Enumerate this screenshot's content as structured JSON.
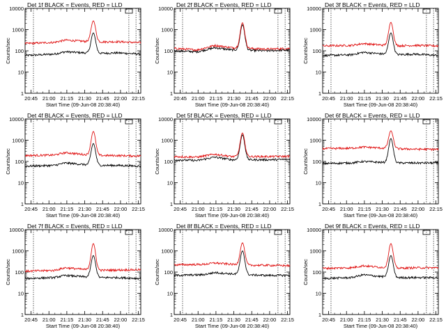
{
  "chart_data": [
    {
      "type": "line",
      "title": "Det 1f BLACK = Events, RED = LLD",
      "xlabel": "Start Time (09-Jun-08 20:38:40)",
      "ylabel": "Counts/sec",
      "yscale": "log",
      "ylim": [
        1,
        10000
      ],
      "xlim": [
        "20:40",
        "22:17"
      ],
      "xticks": [
        "20:45",
        "21:00",
        "21:15",
        "21:30",
        "21:45",
        "22:00",
        "22:15"
      ],
      "yticks": [
        "1",
        "10",
        "100",
        "1000",
        "10000"
      ],
      "vlines": [
        "20:47",
        "22:07",
        "22:13"
      ],
      "series": [
        {
          "name": "Events",
          "color": "#000000",
          "baseline": [
            [
              0,
              60
            ],
            [
              25,
              70
            ],
            [
              35,
              90
            ],
            [
              60,
              75
            ],
            [
              80,
              80
            ],
            [
              100,
              70
            ]
          ],
          "peak": {
            "center": 0.59,
            "value": 700
          }
        },
        {
          "name": "LLD",
          "color": "#e01010",
          "baseline": [
            [
              0,
              220
            ],
            [
              25,
              250
            ],
            [
              35,
              320
            ],
            [
              60,
              260
            ],
            [
              80,
              270
            ],
            [
              100,
              240
            ]
          ],
          "peak": {
            "center": 0.59,
            "value": 2600
          }
        }
      ]
    },
    {
      "type": "line",
      "title": "Det 2f BLACK = Events, RED = LLD",
      "xlabel": "Start Time (09-Jun-08 20:38:40)",
      "ylabel": "Counts/sec",
      "yscale": "log",
      "ylim": [
        1,
        10000
      ],
      "xlim": [
        "20:40",
        "22:17"
      ],
      "xticks": [
        "20:45",
        "21:00",
        "21:15",
        "21:30",
        "21:45",
        "22:00",
        "22:15"
      ],
      "yticks": [
        "1",
        "10",
        "100",
        "1000",
        "10000"
      ],
      "vlines": [
        "20:47",
        "22:07",
        "22:13"
      ],
      "series": [
        {
          "name": "Events",
          "color": "#000000",
          "baseline": [
            [
              0,
              100
            ],
            [
              20,
              90
            ],
            [
              35,
              140
            ],
            [
              50,
              110
            ],
            [
              80,
              100
            ],
            [
              100,
              110
            ]
          ],
          "peak": {
            "center": 0.59,
            "value": 1700
          }
        },
        {
          "name": "LLD",
          "color": "#e01010",
          "baseline": [
            [
              0,
              130
            ],
            [
              20,
              110
            ],
            [
              35,
              180
            ],
            [
              50,
              140
            ],
            [
              80,
              120
            ],
            [
              100,
              130
            ]
          ],
          "peak": {
            "center": 0.59,
            "value": 2100
          }
        }
      ]
    },
    {
      "type": "line",
      "title": "Det 3f BLACK = Events, RED = LLD",
      "xlabel": "Start Time (09-Jun-08 20:38:40)",
      "ylabel": "Counts/sec",
      "yscale": "log",
      "ylim": [
        1,
        10000
      ],
      "xlim": [
        "20:40",
        "22:17"
      ],
      "xticks": [
        "20:45",
        "21:00",
        "21:15",
        "21:30",
        "21:45",
        "22:00",
        "22:15"
      ],
      "yticks": [
        "1",
        "10",
        "100",
        "1000",
        "10000"
      ],
      "vlines": [
        "20:47",
        "22:07",
        "22:13"
      ],
      "series": [
        {
          "name": "Events",
          "color": "#000000",
          "baseline": [
            [
              0,
              60
            ],
            [
              25,
              65
            ],
            [
              35,
              85
            ],
            [
              60,
              65
            ],
            [
              80,
              70
            ],
            [
              100,
              60
            ]
          ],
          "peak": {
            "center": 0.59,
            "value": 700
          }
        },
        {
          "name": "LLD",
          "color": "#e01010",
          "baseline": [
            [
              0,
              170
            ],
            [
              25,
              180
            ],
            [
              35,
              220
            ],
            [
              60,
              170
            ],
            [
              80,
              180
            ],
            [
              100,
              170
            ]
          ],
          "peak": {
            "center": 0.59,
            "value": 2200
          }
        }
      ]
    },
    {
      "type": "line",
      "title": "Det 4f BLACK = Events, RED = LLD",
      "xlabel": "Start Time (09-Jun-08 20:38:40)",
      "ylabel": "Counts/sec",
      "yscale": "log",
      "ylim": [
        1,
        10000
      ],
      "xlim": [
        "20:40",
        "22:17"
      ],
      "xticks": [
        "20:45",
        "21:00",
        "21:15",
        "21:30",
        "21:45",
        "22:00",
        "22:15"
      ],
      "yticks": [
        "1",
        "10",
        "100",
        "1000",
        "10000"
      ],
      "vlines": [
        "20:47",
        "22:07",
        "22:13"
      ],
      "series": [
        {
          "name": "Events",
          "color": "#000000",
          "baseline": [
            [
              0,
              60
            ],
            [
              25,
              65
            ],
            [
              35,
              85
            ],
            [
              60,
              65
            ],
            [
              80,
              65
            ],
            [
              100,
              60
            ]
          ],
          "peak": {
            "center": 0.59,
            "value": 700
          }
        },
        {
          "name": "LLD",
          "color": "#e01010",
          "baseline": [
            [
              0,
              190
            ],
            [
              25,
              200
            ],
            [
              35,
              260
            ],
            [
              60,
              190
            ],
            [
              80,
              190
            ],
            [
              100,
              180
            ]
          ],
          "peak": {
            "center": 0.59,
            "value": 2600
          }
        }
      ]
    },
    {
      "type": "line",
      "title": "Det 5f BLACK = Events, RED = LLD",
      "xlabel": "Start Time (09-Jun-08 20:38:40)",
      "ylabel": "Counts/sec",
      "yscale": "log",
      "ylim": [
        1,
        10000
      ],
      "xlim": [
        "20:40",
        "22:17"
      ],
      "xticks": [
        "20:45",
        "21:00",
        "21:15",
        "21:30",
        "21:45",
        "22:00",
        "22:15"
      ],
      "yticks": [
        "1",
        "10",
        "100",
        "1000",
        "10000"
      ],
      "vlines": [
        "20:47",
        "22:07",
        "22:13"
      ],
      "series": [
        {
          "name": "Events",
          "color": "#000000",
          "baseline": [
            [
              0,
              120
            ],
            [
              20,
              110
            ],
            [
              35,
              160
            ],
            [
              50,
              120
            ],
            [
              80,
              120
            ],
            [
              100,
              125
            ]
          ],
          "peak": {
            "center": 0.59,
            "value": 1800
          }
        },
        {
          "name": "LLD",
          "color": "#e01010",
          "baseline": [
            [
              0,
              170
            ],
            [
              20,
              160
            ],
            [
              35,
              220
            ],
            [
              50,
              170
            ],
            [
              80,
              170
            ],
            [
              100,
              175
            ]
          ],
          "peak": {
            "center": 0.59,
            "value": 2200
          }
        }
      ]
    },
    {
      "type": "line",
      "title": "Det 6f BLACK = Events, RED = LLD",
      "xlabel": "Start Time (09-Jun-08 20:38:40)",
      "ylabel": "Counts/sec",
      "yscale": "log",
      "ylim": [
        1,
        10000
      ],
      "xlim": [
        "20:40",
        "22:17"
      ],
      "xticks": [
        "20:45",
        "21:00",
        "21:15",
        "21:30",
        "21:45",
        "22:00",
        "22:15"
      ],
      "yticks": [
        "1",
        "10",
        "100",
        "1000",
        "10000"
      ],
      "vlines": [
        "20:47",
        "22:07",
        "22:13"
      ],
      "series": [
        {
          "name": "Events",
          "color": "#000000",
          "baseline": [
            [
              0,
              80
            ],
            [
              25,
              85
            ],
            [
              35,
              100
            ],
            [
              60,
              85
            ],
            [
              80,
              85
            ],
            [
              100,
              85
            ]
          ],
          "peak": {
            "center": 0.59,
            "value": 1200
          }
        },
        {
          "name": "LLD",
          "color": "#e01010",
          "baseline": [
            [
              0,
              400
            ],
            [
              25,
              420
            ],
            [
              35,
              480
            ],
            [
              60,
              400
            ],
            [
              80,
              380
            ],
            [
              100,
              370
            ]
          ],
          "peak": {
            "center": 0.59,
            "value": 2800
          }
        }
      ]
    },
    {
      "type": "line",
      "title": "Det 7f BLACK = Events, RED = LLD",
      "xlabel": "Start Time (09-Jun-08 20:38:40)",
      "ylabel": "Counts/sec",
      "yscale": "log",
      "ylim": [
        1,
        10000
      ],
      "xlim": [
        "20:40",
        "22:17"
      ],
      "xticks": [
        "20:45",
        "21:00",
        "21:15",
        "21:30",
        "21:45",
        "22:00",
        "22:15"
      ],
      "yticks": [
        "1",
        "10",
        "100",
        "1000",
        "10000"
      ],
      "vlines": [
        "20:47",
        "22:07",
        "22:13"
      ],
      "series": [
        {
          "name": "Events",
          "color": "#000000",
          "baseline": [
            [
              0,
              50
            ],
            [
              25,
              55
            ],
            [
              35,
              70
            ],
            [
              60,
              55
            ],
            [
              80,
              55
            ],
            [
              100,
              50
            ]
          ],
          "peak": {
            "center": 0.59,
            "value": 600
          }
        },
        {
          "name": "LLD",
          "color": "#e01010",
          "baseline": [
            [
              0,
              110
            ],
            [
              25,
              120
            ],
            [
              35,
              160
            ],
            [
              60,
              120
            ],
            [
              80,
              125
            ],
            [
              100,
              130
            ]
          ],
          "peak": {
            "center": 0.59,
            "value": 2200
          }
        }
      ]
    },
    {
      "type": "line",
      "title": "Det 8f BLACK = Events, RED = LLD",
      "xlabel": "Start Time (09-Jun-08 20:38:40)",
      "ylabel": "Counts/sec",
      "yscale": "log",
      "ylim": [
        1,
        10000
      ],
      "xlim": [
        "20:40",
        "22:17"
      ],
      "xticks": [
        "20:45",
        "21:00",
        "21:15",
        "21:30",
        "21:45",
        "22:00",
        "22:15"
      ],
      "yticks": [
        "1",
        "10",
        "100",
        "1000",
        "10000"
      ],
      "vlines": [
        "20:47",
        "22:07",
        "22:13"
      ],
      "series": [
        {
          "name": "Events",
          "color": "#000000",
          "baseline": [
            [
              0,
              70
            ],
            [
              25,
              75
            ],
            [
              35,
              95
            ],
            [
              60,
              75
            ],
            [
              80,
              70
            ],
            [
              100,
              70
            ]
          ],
          "peak": {
            "center": 0.59,
            "value": 1000
          }
        },
        {
          "name": "LLD",
          "color": "#e01010",
          "baseline": [
            [
              0,
              220
            ],
            [
              25,
              230
            ],
            [
              35,
              270
            ],
            [
              60,
              210
            ],
            [
              80,
              210
            ],
            [
              100,
              200
            ]
          ],
          "peak": {
            "center": 0.59,
            "value": 2400
          }
        }
      ]
    },
    {
      "type": "line",
      "title": "Det 9f BLACK = Events, RED = LLD",
      "xlabel": "Start Time (09-Jun-08 20:38:40)",
      "ylabel": "Counts/sec",
      "yscale": "log",
      "ylim": [
        1,
        10000
      ],
      "xlim": [
        "20:40",
        "22:17"
      ],
      "xticks": [
        "20:45",
        "21:00",
        "21:15",
        "21:30",
        "21:45",
        "22:00",
        "22:15"
      ],
      "yticks": [
        "1",
        "10",
        "100",
        "1000",
        "10000"
      ],
      "vlines": [
        "20:47",
        "22:07",
        "22:13"
      ],
      "series": [
        {
          "name": "Events",
          "color": "#000000",
          "baseline": [
            [
              0,
              50
            ],
            [
              25,
              55
            ],
            [
              35,
              75
            ],
            [
              60,
              55
            ],
            [
              80,
              55
            ],
            [
              100,
              55
            ]
          ],
          "peak": {
            "center": 0.59,
            "value": 600
          }
        },
        {
          "name": "LLD",
          "color": "#e01010",
          "baseline": [
            [
              0,
              150
            ],
            [
              25,
              160
            ],
            [
              35,
              200
            ],
            [
              60,
              150
            ],
            [
              80,
              160
            ],
            [
              100,
              160
            ]
          ],
          "peak": {
            "center": 0.59,
            "value": 2200
          }
        }
      ]
    }
  ]
}
